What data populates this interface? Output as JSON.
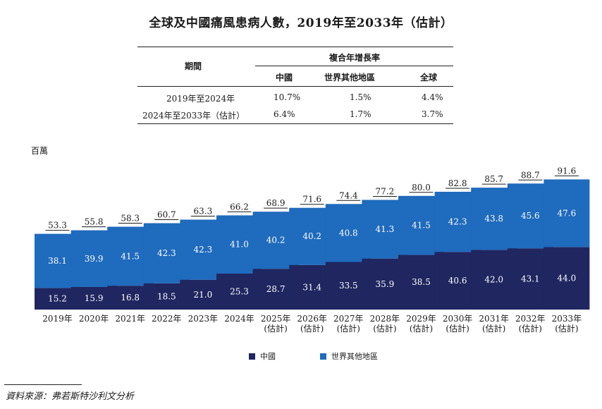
{
  "title": "全球及中國痛風患病人數，2019年至2033年（估計）",
  "table": {
    "period_header": "期間",
    "cagr_header": "複合年增長率",
    "col_headers": [
      "中國",
      "世界其他地區",
      "全球"
    ],
    "rows": [
      {
        "period": "2019年至2024年",
        "values": [
          "10.7%",
          "1.5%",
          "4.4%"
        ]
      },
      {
        "period": "2024年至2033年（估計）",
        "values": [
          "6.4%",
          "1.7%",
          "3.7%"
        ]
      }
    ]
  },
  "chart_data": {
    "type": "bar",
    "stacked": true,
    "unit_label": "百萬",
    "categories": [
      "2019年",
      "2020年",
      "2021年",
      "2022年",
      "2023年",
      "2024年",
      "2025年\n(估計)",
      "2026年\n(估計)",
      "2027年\n(估計)",
      "2028年\n(估計)",
      "2029年\n(估計)",
      "2030年\n(估計)",
      "2031年\n(估計)",
      "2032年\n(估計)",
      "2033年\n(估計)"
    ],
    "series": [
      {
        "name": "中國",
        "color": "#1f2660",
        "values": [
          15.2,
          15.9,
          16.8,
          18.5,
          21.0,
          25.3,
          28.7,
          31.4,
          33.5,
          35.9,
          38.5,
          40.6,
          42.0,
          43.1,
          44.0
        ]
      },
      {
        "name": "世界其他地區",
        "color": "#1f6bbd",
        "values": [
          38.1,
          39.9,
          41.5,
          42.3,
          42.3,
          41.0,
          40.2,
          40.2,
          40.8,
          41.3,
          41.5,
          42.3,
          43.8,
          45.6,
          47.6
        ]
      }
    ],
    "totals": [
      "53.3",
      "55.8",
      "58.3",
      "60.7",
      "63.3",
      "66.2",
      "68.9",
      "71.6",
      "74.4",
      "77.2",
      "80.0",
      "82.8",
      "85.7",
      "88.7",
      "91.6"
    ],
    "ylim": [
      0,
      100
    ],
    "legend_position": "bottom"
  },
  "source": "資料來源：弗若斯特沙利文分析"
}
